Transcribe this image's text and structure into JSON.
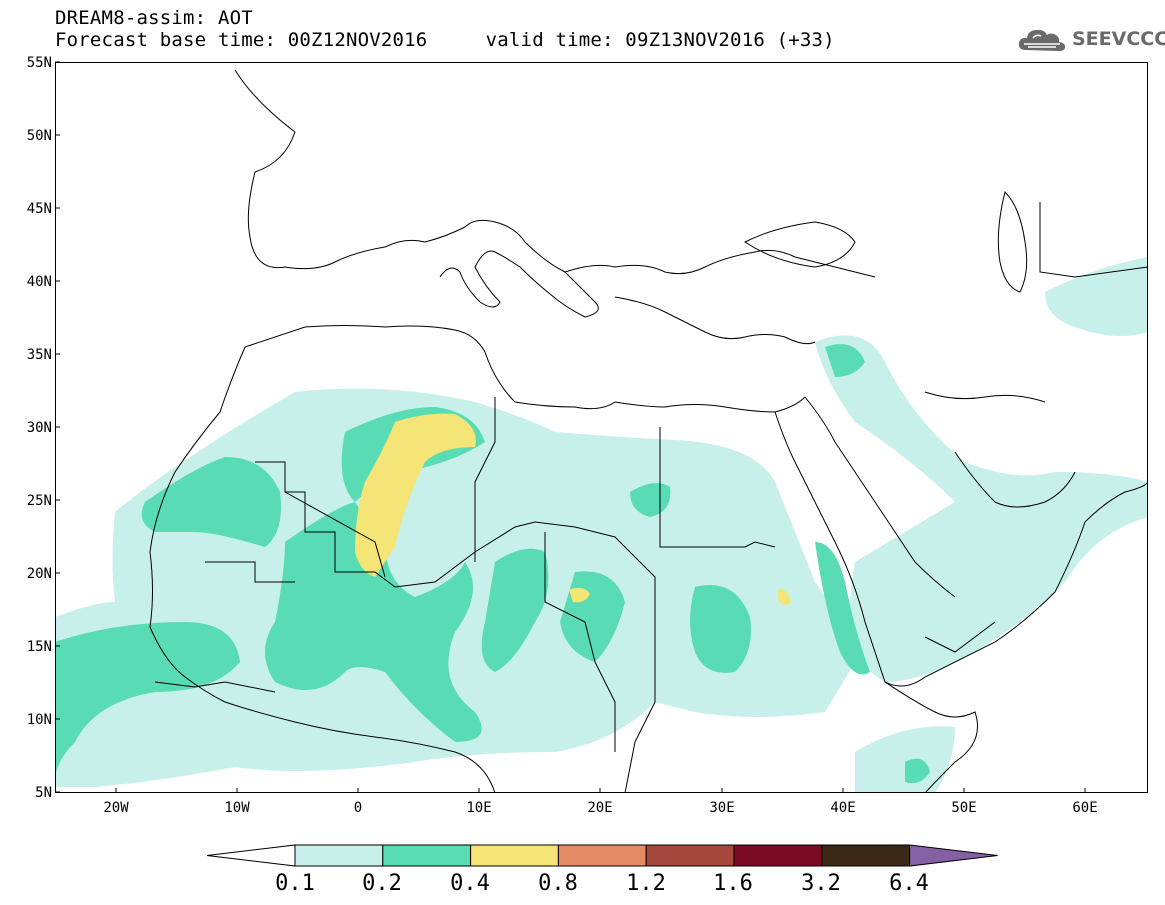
{
  "header": {
    "title_line1": "DREAM8-assim: AOT",
    "title_line2": "Forecast base time: 00Z12NOV2016     valid time: 09Z13NOV2016 (+33)"
  },
  "logo": {
    "text": "SEEVCCC",
    "icon": "cloud-icon"
  },
  "map": {
    "projection": "lat-lon",
    "lon_range": [
      -25,
      65
    ],
    "lat_range": [
      5,
      55
    ],
    "lat_ticks": [
      "55N",
      "50N",
      "45N",
      "40N",
      "35N",
      "30N",
      "25N",
      "20N",
      "15N",
      "10N",
      "5N"
    ],
    "lon_ticks": [
      "20W",
      "10W",
      "0",
      "10E",
      "20E",
      "30E",
      "40E",
      "50E",
      "60E"
    ]
  },
  "colorbar": {
    "labels": [
      "0.1",
      "0.2",
      "0.4",
      "0.8",
      "1.2",
      "1.6",
      "3.2",
      "6.4"
    ],
    "colors": [
      "#ffffff",
      "#c7f0ea",
      "#59dcb3",
      "#f5e476",
      "#e48b66",
      "#a5483b",
      "#7b0a24",
      "#3a2714",
      "#8560a3"
    ]
  },
  "legend_colors": {
    "aot_0_1_0_2": "#c7f0ea",
    "aot_0_2_0_4": "#59dcb3",
    "aot_0_4_0_8": "#f5e476"
  }
}
